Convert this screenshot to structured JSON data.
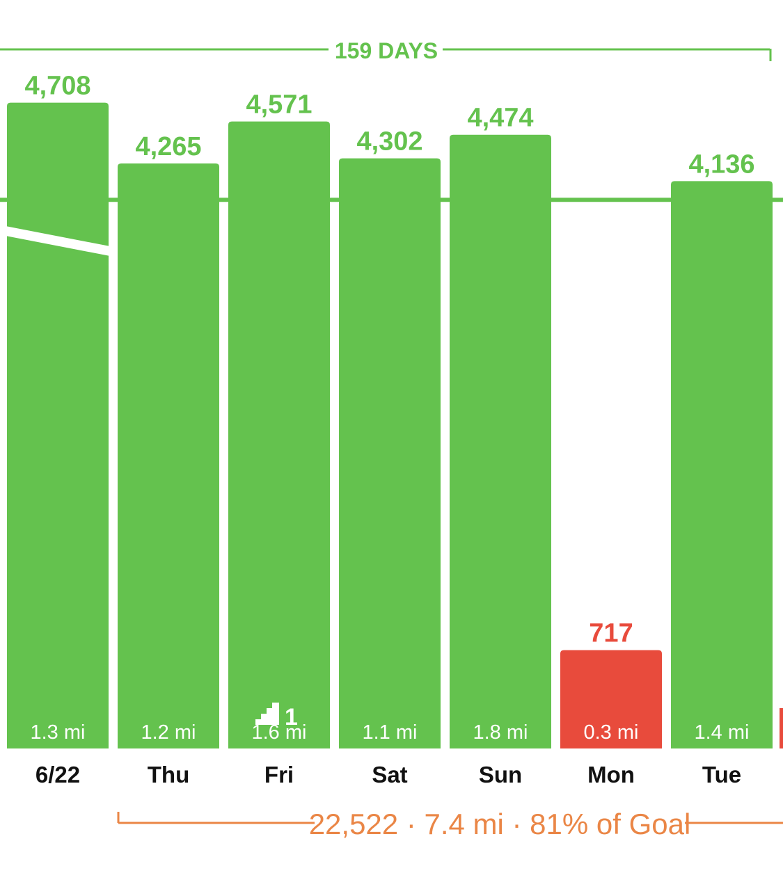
{
  "streak": {
    "label": "159 DAYS"
  },
  "summary": {
    "text": "22,522 · 7.4 mi · 81% of Goal"
  },
  "colors": {
    "met": "#64c24e",
    "missed": "#e84b3c",
    "summary": "#ea8646",
    "day_text": "#111111"
  },
  "chart_data": {
    "type": "bar",
    "title": "",
    "xlabel": "",
    "ylabel": "",
    "ylim": [
      0,
      4900
    ],
    "goal": 4000,
    "grid": false,
    "categories": [
      "6/22",
      "Thu",
      "Fri",
      "Sat",
      "Sun",
      "Mon",
      "Tue"
    ],
    "values": [
      4708,
      4265,
      4571,
      4302,
      4474,
      717,
      4136
    ],
    "value_labels": [
      "4,708",
      "4,265",
      "4,571",
      "4,302",
      "4,474",
      "717",
      "4,136"
    ],
    "distances": [
      "1.3 mi",
      "1.2 mi",
      "1.6 mi",
      "1.1 mi",
      "1.8 mi",
      "0.3 mi",
      "1.4 mi"
    ],
    "status": [
      "met",
      "met",
      "met",
      "met",
      "met",
      "missed",
      "met"
    ],
    "floors": [
      null,
      null,
      "1",
      null,
      null,
      null,
      null
    ],
    "axis_break": [
      true,
      false,
      false,
      false,
      false,
      false,
      false
    ]
  }
}
